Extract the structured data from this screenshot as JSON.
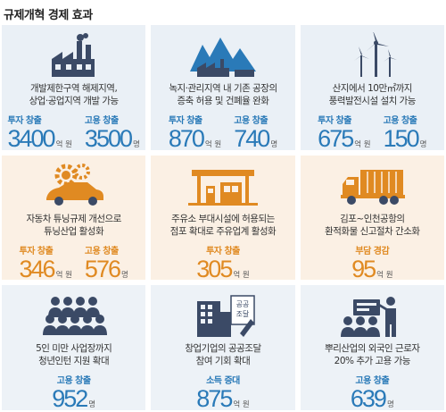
{
  "title": "규제개혁 경제 효과",
  "colors": {
    "blue": "#2a7ab8",
    "orange": "#e08a22",
    "navy": "#3b4a66"
  },
  "cells": [
    {
      "icon": "factory-icon",
      "desc": [
        "개발제한구역 해제지역,",
        "상업·공업지역 개발 가능"
      ],
      "stats": [
        {
          "label": "투자 창출",
          "value": "3400",
          "unit": "억 원"
        },
        {
          "label": "고용 창출",
          "value": "3500",
          "unit": "명"
        }
      ]
    },
    {
      "icon": "mountain-factory-icon",
      "desc": [
        "녹지·관리지역 내 기존 공장의",
        "증축 허용 및 건폐율 완화"
      ],
      "stats": [
        {
          "label": "투자 창출",
          "value": "870",
          "unit": "억 원"
        },
        {
          "label": "고용 창출",
          "value": "740",
          "unit": "명"
        }
      ]
    },
    {
      "icon": "wind-turbine-icon",
      "desc": [
        "산지에서 10만㎡까지",
        "풍력발전시설 설치 가능"
      ],
      "stats": [
        {
          "label": "투자 창출",
          "value": "675",
          "unit": "억 원"
        },
        {
          "label": "고용 창출",
          "value": "150",
          "unit": "명"
        }
      ]
    },
    {
      "icon": "car-gear-icon",
      "desc": [
        "자동차 튜닝규제 개선으로",
        "튜닝산업 활성화"
      ],
      "stats": [
        {
          "label": "투자 창출",
          "value": "346",
          "unit": "억 원"
        },
        {
          "label": "고용 창출",
          "value": "576",
          "unit": "명"
        }
      ]
    },
    {
      "icon": "gas-station-icon",
      "desc": [
        "주유소 부대시설에 허용되는",
        "점포 확대로 주유업계 활성화"
      ],
      "stats": [
        {
          "label": "투자 창출",
          "value": "305",
          "unit": "억 원"
        }
      ]
    },
    {
      "icon": "truck-icon",
      "desc": [
        "김포~인천공항의",
        "환적화물 신고절차 간소화"
      ],
      "stats": [
        {
          "label": "부담 경감",
          "value": "95",
          "unit": "억 원"
        }
      ]
    },
    {
      "icon": "people-group-icon",
      "desc": [
        "5인 미만 사업장까지",
        "청년인턴 지원 확대"
      ],
      "stats": [
        {
          "label": "고용 창출",
          "value": "952",
          "unit": "명"
        }
      ]
    },
    {
      "icon": "building-document-icon",
      "desc": [
        "창업기업의 공공조달",
        "참여 기회 확대"
      ],
      "stats": [
        {
          "label": "소득 증대",
          "value": "875",
          "unit": "억 원"
        }
      ]
    },
    {
      "icon": "presenter-audience-icon",
      "desc": [
        "뿌리산업의 외국인 근로자",
        "20% 추가 고용 가능"
      ],
      "stats": [
        {
          "label": "고용 창출",
          "value": "639",
          "unit": "명"
        }
      ]
    }
  ],
  "icon_text": {
    "procurement_doc": "공공\n조달"
  }
}
